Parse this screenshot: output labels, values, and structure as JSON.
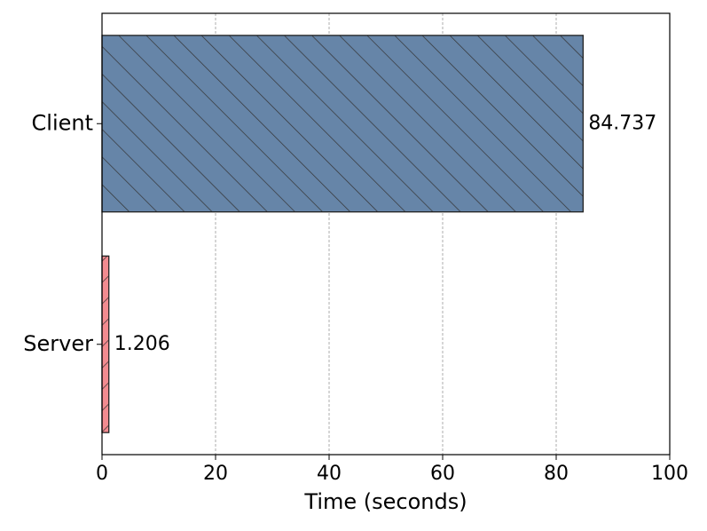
{
  "chart_data": {
    "type": "barh",
    "categories": [
      "Client",
      "Server"
    ],
    "values": [
      84.737,
      1.206
    ],
    "colors": [
      "#6685a8",
      "#f28b90"
    ],
    "hatches": [
      "\\",
      "/"
    ],
    "xlabel": "Time (seconds)",
    "xlim": [
      0,
      100
    ],
    "xticks": [
      0,
      20,
      40,
      60,
      80,
      100
    ],
    "grid": true
  }
}
